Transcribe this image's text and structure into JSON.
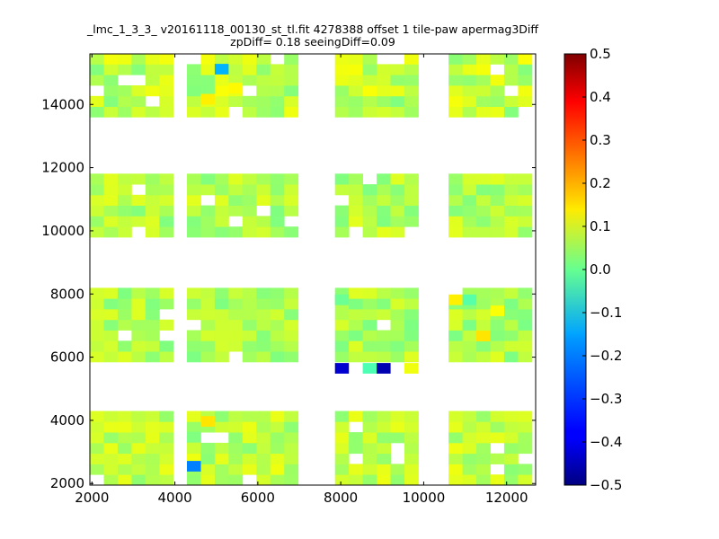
{
  "chart_data": {
    "type": "heatmap",
    "title": "_lmc_1_3_3_ v20161118_00130_st_tl.fit 4278388 offset 1 tile-paw apermag3Diff",
    "subtitle": "zpDiff= 0.18 seeingDiff=0.09",
    "xlim": [
      1950,
      12700
    ],
    "ylim": [
      1950,
      15600
    ],
    "x_ticks": [
      2000,
      4000,
      6000,
      8000,
      10000,
      12000
    ],
    "y_ticks": [
      2000,
      4000,
      6000,
      8000,
      10000,
      12000,
      14000
    ],
    "x_tick_labels": [
      "2000",
      "4000",
      "6000",
      "8000",
      "10000",
      "12000"
    ],
    "y_tick_labels": [
      "2000",
      "4000",
      "6000",
      "8000",
      "10000",
      "12000",
      "14000"
    ],
    "cell_size": 335,
    "colorbar": {
      "colormap": "jet",
      "range": [
        -0.5,
        0.5
      ],
      "ticks": [
        0.5,
        0.4,
        0.3,
        0.2,
        0.1,
        0.0,
        -0.1,
        -0.2,
        -0.3,
        -0.4,
        -0.5
      ],
      "tick_labels": [
        "0.5",
        "0.4",
        "0.3",
        "0.2",
        "0.1",
        "0.0",
        "−0.1",
        "−0.2",
        "−0.3",
        "−0.4",
        "−0.5"
      ]
    },
    "x_column_starts": [
      1950,
      2285,
      2620,
      2955,
      3290,
      3625,
      4290,
      4625,
      4960,
      5295,
      5630,
      5965,
      6300,
      6635,
      7860,
      8195,
      8530,
      8865,
      9200,
      9535,
      10600,
      10935,
      11270,
      11605,
      11940,
      12275
    ],
    "blocks": [
      {
        "y_range": [
          1950,
          4050
        ],
        "x_range": [
          1950,
          12700
        ],
        "base": 0.06,
        "variance": 0.05
      },
      {
        "y_range": [
          5850,
          7950
        ],
        "x_range": [
          1950,
          12700
        ],
        "base": 0.045,
        "variance": 0.05
      },
      {
        "y_range": [
          9800,
          11800
        ],
        "x_range": [
          1950,
          12700
        ],
        "base": 0.05,
        "variance": 0.05
      },
      {
        "y_range": [
          13600,
          15600
        ],
        "x_range": [
          1950,
          12700
        ],
        "base": 0.06,
        "variance": 0.06
      }
    ],
    "outlier_cells": [
      {
        "x": 4960,
        "y": 14950,
        "value": -0.2
      },
      {
        "x": 4290,
        "y": 2380,
        "value": -0.25
      },
      {
        "x": 4290,
        "y": 3300,
        "value": 0.0
      },
      {
        "x": 4625,
        "y": 3800,
        "value": 0.15
      },
      {
        "x": 7860,
        "y": 5480,
        "value": -0.42
      },
      {
        "x": 8530,
        "y": 5480,
        "value": -0.05
      },
      {
        "x": 8865,
        "y": 5480,
        "value": -0.45
      },
      {
        "x": 9535,
        "y": 5480,
        "value": 0.11
      },
      {
        "x": 7860,
        "y": 7650,
        "value": -0.02
      },
      {
        "x": 10600,
        "y": 7650,
        "value": 0.14
      },
      {
        "x": 10935,
        "y": 7650,
        "value": -0.04
      },
      {
        "x": 11270,
        "y": 6500,
        "value": 0.15
      },
      {
        "x": 11605,
        "y": 7300,
        "value": 0.12
      },
      {
        "x": 4625,
        "y": 14000,
        "value": 0.14
      },
      {
        "x": 5295,
        "y": 14350,
        "value": 0.13
      }
    ]
  }
}
